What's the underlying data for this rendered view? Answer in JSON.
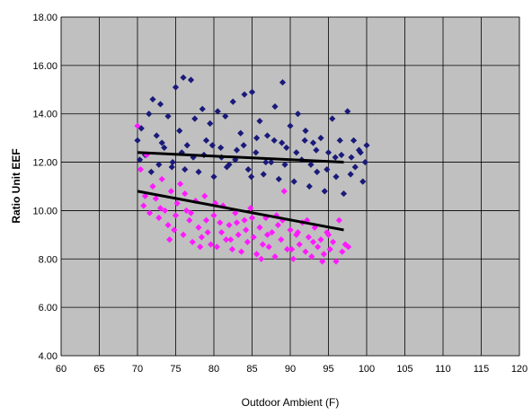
{
  "chart_data": {
    "type": "scatter",
    "title": "",
    "xlabel": "Outdoor Ambient (F)",
    "ylabel": "Ratio Unit EEF",
    "xlim": [
      60,
      120
    ],
    "ylim": [
      4,
      18
    ],
    "xticks": [
      60,
      65,
      70,
      75,
      80,
      85,
      90,
      95,
      100,
      105,
      110,
      115,
      120
    ],
    "xtick_labels": [
      "60",
      "65",
      "70",
      "75",
      "80",
      "85",
      "90",
      "95",
      "100",
      "105",
      "110",
      "115",
      "120"
    ],
    "yticks": [
      4,
      6,
      8,
      10,
      12,
      14,
      16,
      18
    ],
    "ytick_labels": [
      "4.00",
      "6.00",
      "8.00",
      "10.00",
      "12.00",
      "14.00",
      "16.00",
      "18.00"
    ],
    "grid": true,
    "legend": "none",
    "plot_background": "#c0c0c0",
    "series": [
      {
        "color": "#1a1a7a",
        "marker": "diamond",
        "points": [
          [
            70.0,
            12.9
          ],
          [
            70.5,
            13.4
          ],
          [
            71.0,
            12.3
          ],
          [
            71.5,
            14.0
          ],
          [
            72.0,
            14.6
          ],
          [
            72.5,
            13.1
          ],
          [
            73.0,
            14.4
          ],
          [
            73.5,
            12.6
          ],
          [
            74.0,
            13.9
          ],
          [
            74.5,
            11.8
          ],
          [
            75.0,
            15.1
          ],
          [
            75.5,
            13.3
          ],
          [
            76.0,
            15.5
          ],
          [
            76.5,
            12.7
          ],
          [
            77.0,
            15.4
          ],
          [
            77.5,
            13.8
          ],
          [
            78.0,
            11.6
          ],
          [
            78.5,
            14.2
          ],
          [
            79.0,
            12.9
          ],
          [
            79.5,
            13.6
          ],
          [
            80.0,
            11.4
          ],
          [
            80.5,
            14.1
          ],
          [
            81.0,
            12.2
          ],
          [
            81.5,
            13.9
          ],
          [
            82.0,
            11.9
          ],
          [
            82.5,
            14.5
          ],
          [
            83.0,
            12.5
          ],
          [
            83.5,
            13.2
          ],
          [
            84.0,
            14.8
          ],
          [
            84.5,
            11.7
          ],
          [
            85.0,
            14.9
          ],
          [
            85.5,
            12.4
          ],
          [
            86.0,
            13.7
          ],
          [
            86.5,
            11.5
          ],
          [
            87.0,
            13.1
          ],
          [
            87.5,
            12.0
          ],
          [
            88.0,
            14.3
          ],
          [
            88.5,
            11.3
          ],
          [
            89.0,
            15.3
          ],
          [
            89.5,
            12.6
          ],
          [
            90.0,
            13.5
          ],
          [
            90.5,
            11.2
          ],
          [
            91.0,
            14.0
          ],
          [
            91.5,
            12.1
          ],
          [
            92.0,
            13.3
          ],
          [
            92.5,
            11.0
          ],
          [
            93.0,
            12.8
          ],
          [
            93.5,
            11.6
          ],
          [
            94.0,
            13.0
          ],
          [
            94.5,
            10.8
          ],
          [
            95.0,
            12.4
          ],
          [
            95.5,
            13.8
          ],
          [
            96.0,
            11.4
          ],
          [
            96.5,
            12.9
          ],
          [
            97.0,
            10.7
          ],
          [
            97.5,
            14.1
          ],
          [
            98.0,
            12.2
          ],
          [
            98.5,
            11.8
          ],
          [
            99.0,
            12.5
          ],
          [
            99.5,
            11.2
          ],
          [
            100.0,
            12.7
          ],
          [
            99.8,
            12.0
          ],
          [
            70.3,
            12.1
          ],
          [
            72.8,
            11.9
          ],
          [
            74.6,
            12.0
          ],
          [
            76.2,
            11.7
          ],
          [
            78.7,
            12.3
          ],
          [
            80.9,
            12.6
          ],
          [
            82.8,
            12.1
          ],
          [
            84.9,
            11.4
          ],
          [
            86.8,
            12.0
          ],
          [
            88.9,
            12.8
          ],
          [
            90.8,
            12.4
          ],
          [
            92.7,
            11.9
          ],
          [
            94.8,
            11.7
          ],
          [
            96.7,
            12.3
          ],
          [
            98.3,
            12.9
          ],
          [
            73.2,
            12.8
          ],
          [
            77.3,
            12.2
          ],
          [
            81.7,
            11.8
          ],
          [
            85.6,
            13.0
          ],
          [
            89.3,
            11.9
          ],
          [
            93.4,
            12.5
          ],
          [
            97.9,
            11.5
          ],
          [
            71.8,
            11.6
          ],
          [
            79.8,
            12.7
          ],
          [
            87.9,
            12.9
          ],
          [
            95.9,
            12.2
          ],
          [
            75.8,
            12.4
          ],
          [
            83.9,
            12.7
          ],
          [
            91.9,
            12.9
          ],
          [
            99.2,
            12.4
          ]
        ]
      },
      {
        "color": "#ff1aff",
        "marker": "diamond",
        "points": [
          [
            70.0,
            13.5
          ],
          [
            70.4,
            11.7
          ],
          [
            70.8,
            10.2
          ],
          [
            71.2,
            12.3
          ],
          [
            71.6,
            9.9
          ],
          [
            72.0,
            11.0
          ],
          [
            72.4,
            10.5
          ],
          [
            72.8,
            9.7
          ],
          [
            73.2,
            11.3
          ],
          [
            73.6,
            10.0
          ],
          [
            74.0,
            9.4
          ],
          [
            74.4,
            10.8
          ],
          [
            74.8,
            9.2
          ],
          [
            75.2,
            10.3
          ],
          [
            75.6,
            11.1
          ],
          [
            76.0,
            9.0
          ],
          [
            76.4,
            10.0
          ],
          [
            76.8,
            9.6
          ],
          [
            77.2,
            8.7
          ],
          [
            77.6,
            10.4
          ],
          [
            78.0,
            9.3
          ],
          [
            78.4,
            8.9
          ],
          [
            78.8,
            10.6
          ],
          [
            79.2,
            9.1
          ],
          [
            79.6,
            8.6
          ],
          [
            80.0,
            9.8
          ],
          [
            80.4,
            8.5
          ],
          [
            80.8,
            9.5
          ],
          [
            81.2,
            10.2
          ],
          [
            81.6,
            8.8
          ],
          [
            82.0,
            9.4
          ],
          [
            82.4,
            8.4
          ],
          [
            82.8,
            9.9
          ],
          [
            83.2,
            9.0
          ],
          [
            83.6,
            8.3
          ],
          [
            84.0,
            9.6
          ],
          [
            84.4,
            8.7
          ],
          [
            84.8,
            10.1
          ],
          [
            85.2,
            8.9
          ],
          [
            85.6,
            8.2
          ],
          [
            86.0,
            9.3
          ],
          [
            86.4,
            8.6
          ],
          [
            86.8,
            9.7
          ],
          [
            87.2,
            8.5
          ],
          [
            87.6,
            9.1
          ],
          [
            88.0,
            8.1
          ],
          [
            88.4,
            9.4
          ],
          [
            88.8,
            8.8
          ],
          [
            89.2,
            10.8
          ],
          [
            89.6,
            8.4
          ],
          [
            90.0,
            9.2
          ],
          [
            90.4,
            8.0
          ],
          [
            90.8,
            9.0
          ],
          [
            91.2,
            8.6
          ],
          [
            91.6,
            9.5
          ],
          [
            92.0,
            8.3
          ],
          [
            92.4,
            8.9
          ],
          [
            92.8,
            8.1
          ],
          [
            93.2,
            9.3
          ],
          [
            93.6,
            8.5
          ],
          [
            94.0,
            8.8
          ],
          [
            94.4,
            8.2
          ],
          [
            94.8,
            9.1
          ],
          [
            95.2,
            8.4
          ],
          [
            95.6,
            8.7
          ],
          [
            96.0,
            7.9
          ],
          [
            96.4,
            9.6
          ],
          [
            96.8,
            8.3
          ],
          [
            97.2,
            8.6
          ],
          [
            97.6,
            8.5
          ],
          [
            71.0,
            10.6
          ],
          [
            73.0,
            10.1
          ],
          [
            75.0,
            9.8
          ],
          [
            77.0,
            9.9
          ],
          [
            79.0,
            9.6
          ],
          [
            81.0,
            9.1
          ],
          [
            83.0,
            9.5
          ],
          [
            85.0,
            9.7
          ],
          [
            87.0,
            9.0
          ],
          [
            89.0,
            9.6
          ],
          [
            91.0,
            9.1
          ],
          [
            93.0,
            8.7
          ],
          [
            95.0,
            9.0
          ],
          [
            76.2,
            10.7
          ],
          [
            80.2,
            10.3
          ],
          [
            84.2,
            9.2
          ],
          [
            88.2,
            9.8
          ],
          [
            92.2,
            9.6
          ],
          [
            74.2,
            8.8
          ],
          [
            78.2,
            8.5
          ],
          [
            82.2,
            8.8
          ],
          [
            86.2,
            8.0
          ],
          [
            90.2,
            8.4
          ],
          [
            94.2,
            7.9
          ]
        ]
      }
    ],
    "trendlines": [
      {
        "color": "#000000",
        "x": [
          70,
          97
        ],
        "y": [
          12.4,
          12.0
        ]
      },
      {
        "color": "#000000",
        "x": [
          70,
          97
        ],
        "y": [
          10.8,
          9.2
        ]
      }
    ]
  }
}
